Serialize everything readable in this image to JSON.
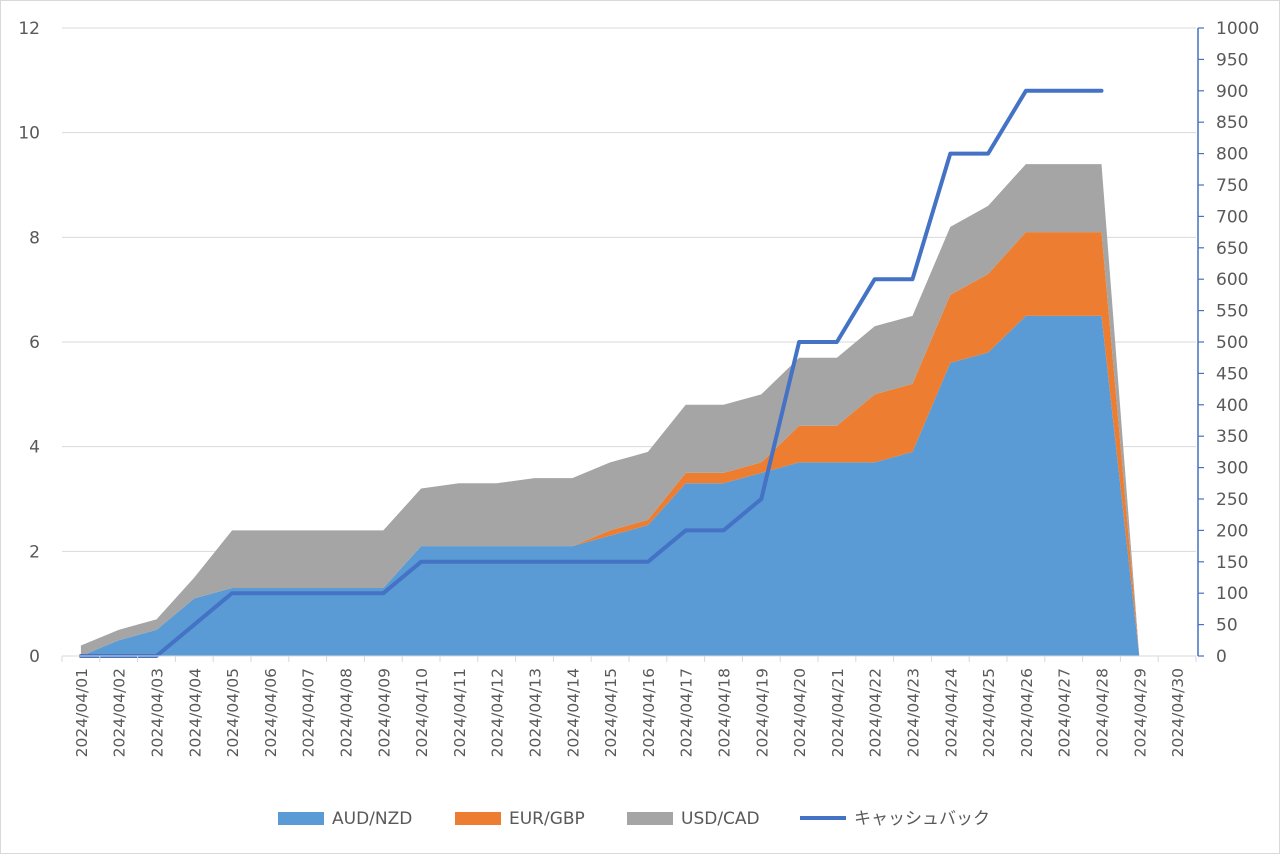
{
  "chart_data": {
    "type": "area",
    "categories": [
      "2024/04/01",
      "2024/04/02",
      "2024/04/03",
      "2024/04/04",
      "2024/04/05",
      "2024/04/06",
      "2024/04/07",
      "2024/04/08",
      "2024/04/09",
      "2024/04/10",
      "2024/04/11",
      "2024/04/12",
      "2024/04/13",
      "2024/04/14",
      "2024/04/15",
      "2024/04/16",
      "2024/04/17",
      "2024/04/18",
      "2024/04/19",
      "2024/04/20",
      "2024/04/21",
      "2024/04/22",
      "2024/04/23",
      "2024/04/24",
      "2024/04/25",
      "2024/04/26",
      "2024/04/27",
      "2024/04/28",
      "2024/04/29",
      "2024/04/30"
    ],
    "stacked_series": [
      {
        "name": "AUD/NZD",
        "color": "#5B9BD5",
        "values": [
          0,
          0.3,
          0.5,
          1.1,
          1.3,
          1.3,
          1.3,
          1.3,
          1.3,
          2.1,
          2.1,
          2.1,
          2.1,
          2.1,
          2.3,
          2.5,
          3.3,
          3.3,
          3.5,
          3.7,
          3.7,
          3.7,
          3.9,
          5.6,
          5.8,
          6.5,
          6.5,
          6.5,
          0,
          null
        ]
      },
      {
        "name": "EUR/GBP",
        "color": "#ED7D31",
        "values": [
          0,
          0,
          0,
          0,
          0,
          0,
          0,
          0,
          0,
          0,
          0,
          0,
          0,
          0,
          0.1,
          0.1,
          0.2,
          0.2,
          0.2,
          0.7,
          0.7,
          1.3,
          1.3,
          1.3,
          1.5,
          1.6,
          1.6,
          1.6,
          0,
          null
        ]
      },
      {
        "name": "USD/CAD",
        "color": "#A5A5A5",
        "values": [
          0.2,
          0.2,
          0.2,
          0.4,
          1.1,
          1.1,
          1.1,
          1.1,
          1.1,
          1.1,
          1.2,
          1.2,
          1.3,
          1.3,
          1.3,
          1.3,
          1.3,
          1.3,
          1.3,
          1.3,
          1.3,
          1.3,
          1.3,
          1.3,
          1.3,
          1.3,
          1.3,
          1.3,
          0,
          null
        ]
      }
    ],
    "line_series": {
      "name": "キャッシュバック",
      "color": "#4472C4",
      "axis": "right",
      "values": [
        0,
        0,
        0,
        50,
        100,
        100,
        100,
        100,
        100,
        150,
        150,
        150,
        150,
        150,
        150,
        150,
        200,
        200,
        250,
        500,
        500,
        600,
        600,
        800,
        800,
        900,
        900,
        900,
        null,
        null
      ]
    },
    "y_left": {
      "min": 0,
      "max": 12,
      "step": 2,
      "ticks": [
        "0",
        "2",
        "4",
        "6",
        "8",
        "10",
        "12"
      ]
    },
    "y_right": {
      "min": 0,
      "max": 1000,
      "step": 50,
      "ticks": [
        "0",
        "50",
        "100",
        "150",
        "200",
        "250",
        "300",
        "350",
        "400",
        "450",
        "500",
        "550",
        "600",
        "650",
        "700",
        "750",
        "800",
        "850",
        "900",
        "950",
        "1000"
      ]
    },
    "grid": true,
    "legend_position": "bottom"
  }
}
